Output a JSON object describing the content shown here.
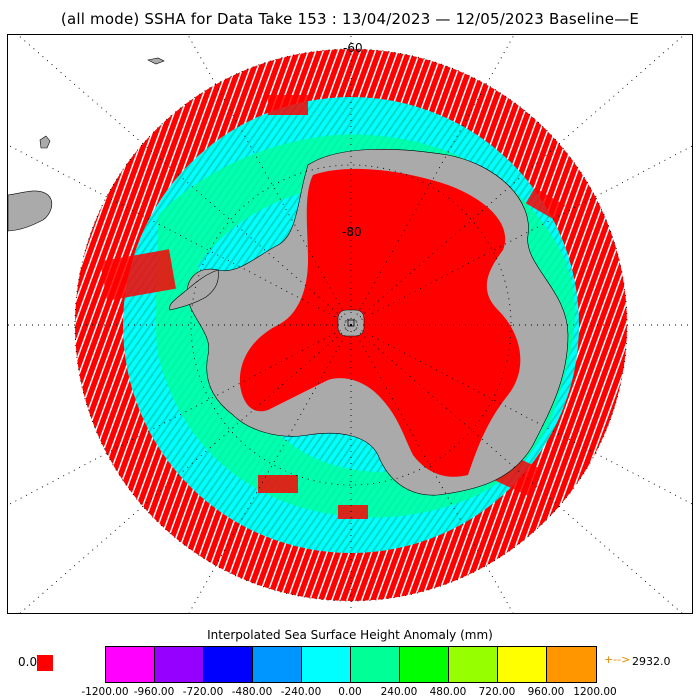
{
  "title": "(all mode) SSHA for Data Take 153 : 13/04/2023 — 12/05/2023 Baseline—E",
  "map": {
    "projection": "south-polar-stereographic",
    "latitude_labels": [
      "-60",
      "-80"
    ],
    "colors": {
      "land": "#aaaaaa",
      "ice_sheet": "#ff0000",
      "ocean_anomaly_dominant": [
        "#00ffff",
        "#00ff96",
        "#ff0000"
      ],
      "graticule": "#000000"
    }
  },
  "colorbar": {
    "title": "Interpolated Sea Surface Height Anomaly (mm)",
    "colors": [
      "#ff00ff",
      "#9600ff",
      "#0000ff",
      "#0096ff",
      "#00ffff",
      "#00ff96",
      "#00ff00",
      "#96ff00",
      "#ffff00",
      "#ff9600"
    ],
    "ticks": [
      "-1200.00",
      "-960.00",
      "-720.00",
      "-480.00",
      "-240.00",
      "0.00",
      "240.00",
      "480.00",
      "720.00",
      "960.00",
      "1200.00"
    ],
    "zero_label": "0.0",
    "zero_color": "#ff0000",
    "max_arrow": "+-->",
    "max_value": "2932.0"
  }
}
